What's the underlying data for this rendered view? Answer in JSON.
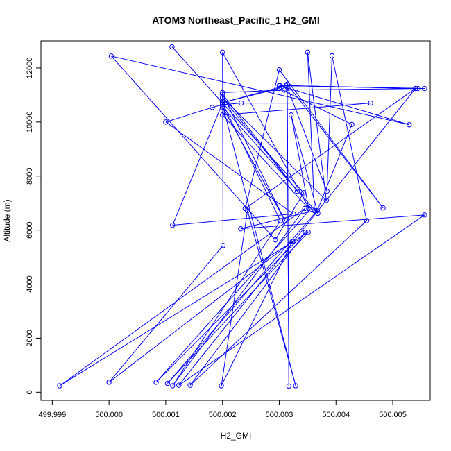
{
  "chart_data": {
    "type": "line",
    "title": "ATOM3 Northeast_Pacific_1 H2_GMI",
    "xlabel": "H2_GMI",
    "ylabel": "Altitude (m)",
    "xlim": [
      499.9988,
      500.00566
    ],
    "ylim": [
      -300,
      13000
    ],
    "xticks": [
      499.999,
      500.0,
      500.001,
      500.002,
      500.003,
      500.004,
      500.005
    ],
    "xtick_labels": [
      "499.999",
      "500.000",
      "500.001",
      "500.002",
      "500.003",
      "500.004",
      "500.005"
    ],
    "yticks": [
      0,
      2000,
      4000,
      6000,
      8000,
      10000,
      12000
    ],
    "ytick_labels": [
      "0",
      "2000",
      "4000",
      "6000",
      "8000",
      "10000",
      "12000"
    ],
    "series_color": "#0000ff",
    "series": [
      {
        "name": "H2_GMI",
        "points": [
          [
            500.00111,
            12780
          ],
          [
            500.00343,
            7380
          ],
          [
            500.00293,
            5640
          ],
          [
            500.00004,
            12440
          ],
          [
            500.00529,
            9900
          ],
          [
            500.003,
            11350
          ],
          [
            500.00544,
            11240
          ],
          [
            500.00301,
            11350
          ],
          [
            500.00556,
            11240
          ],
          [
            500.00309,
            11180
          ],
          [
            500.002,
            11090
          ],
          [
            500.002,
            10780
          ],
          [
            500.002,
            10640
          ],
          [
            500.00233,
            10700
          ],
          [
            500.00461,
            10700
          ],
          [
            500.002,
            10260
          ],
          [
            500.00352,
            6800
          ],
          [
            500.00321,
            10260
          ],
          [
            500.00368,
            6620
          ],
          [
            500.002,
            10560
          ],
          [
            500.0031,
            6350
          ],
          [
            500.002,
            11030
          ],
          [
            500.00332,
            7440
          ],
          [
            500.002,
            10900
          ],
          [
            500.00383,
            7100
          ],
          [
            500.0035,
            12580
          ],
          [
            500.00362,
            6720
          ],
          [
            500.00232,
            6050
          ],
          [
            500.00556,
            6560
          ],
          [
            500.00123,
            260
          ],
          [
            500.0054,
            11240
          ],
          [
            500.0024,
            6800
          ],
          [
            500.003,
            11930
          ],
          [
            500.00483,
            6820
          ],
          [
            500.00314,
            11400
          ],
          [
            500.00317,
            230
          ],
          [
            500.00314,
            11300
          ],
          [
            500.00384,
            7440
          ],
          [
            500.00393,
            12450
          ],
          [
            500.00454,
            6350
          ],
          [
            500.00143,
            260
          ],
          [
            500.00346,
            5920
          ],
          [
            500.00083,
            370
          ],
          [
            500.00354,
            6750
          ],
          [
            500.002,
            12580
          ],
          [
            500.00201,
            5430
          ],
          [
            500.0,
            370
          ],
          [
            500.00323,
            5580
          ],
          [
            500.00198,
            240
          ],
          [
            500.00244,
            6720
          ],
          [
            500.00329,
            240
          ],
          [
            500.002,
            10640
          ],
          [
            500.00182,
            10540
          ],
          [
            500.001,
            10000
          ],
          [
            500.00325,
            6600
          ],
          [
            500.00112,
            6180
          ],
          [
            500.002,
            10700
          ],
          [
            500.00302,
            6350
          ],
          [
            500.00112,
            240
          ],
          [
            500.00345,
            6800
          ],
          [
            499.99913,
            240
          ],
          [
            500.00351,
            5920
          ],
          [
            500.00103,
            330
          ],
          [
            500.00367,
            6720
          ],
          [
            500.00428,
            9910
          ],
          [
            500.003,
            11240
          ],
          [
            500.002,
            10720
          ],
          [
            500.00312,
            11350
          ]
        ]
      }
    ]
  }
}
